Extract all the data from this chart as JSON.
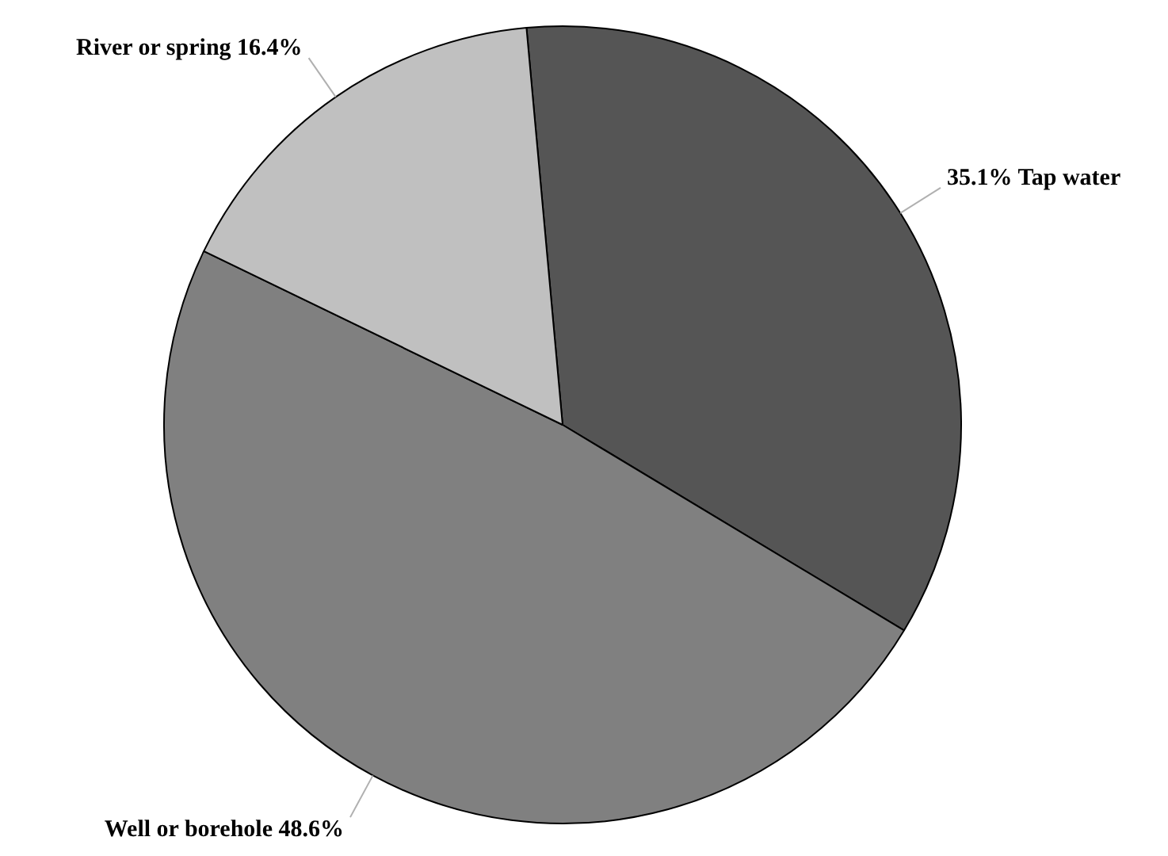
{
  "chart_data": {
    "type": "pie",
    "categories": [
      "Tap water",
      "Well or borehole",
      "River or spring"
    ],
    "values": [
      35.1,
      48.6,
      16.4
    ],
    "colors": [
      "#555555",
      "#808080",
      "#c0c0c0"
    ],
    "value_labels": [
      "35.1%",
      "48.6%",
      "16.4%"
    ],
    "legend": false
  }
}
